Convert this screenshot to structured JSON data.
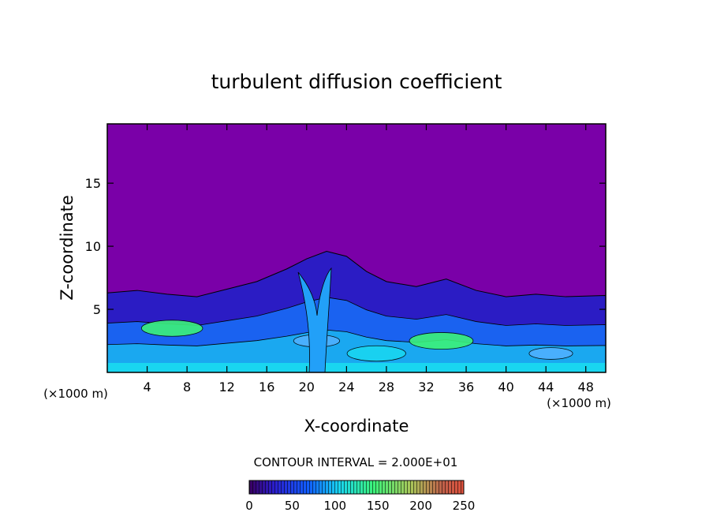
{
  "chart_data": {
    "type": "heatmap",
    "title": "turbulent diffusion coefficient",
    "xlabel": "X-coordinate",
    "ylabel": "Z-coordinate",
    "x_unit": "(×1000 m)",
    "y_unit": "(×1000 m)",
    "xlim": [
      0,
      50
    ],
    "ylim": [
      0,
      19.7
    ],
    "x_ticks": [
      "4",
      "8",
      "12",
      "16",
      "20",
      "24",
      "28",
      "32",
      "36",
      "40",
      "44",
      "48"
    ],
    "y_ticks": [
      "5",
      "10",
      "15"
    ],
    "contour_interval_label": "CONTOUR INTERVAL = 2.000E+01",
    "colorbar": {
      "min": 0,
      "max": 250,
      "ticks": [
        "0",
        "50",
        "100",
        "150",
        "200",
        "250"
      ],
      "colors": [
        "#7a00a8",
        "#2a1fd0",
        "#1060ff",
        "#19d6f0",
        "#3cf27a",
        "#c8e05a",
        "#e0503c"
      ]
    },
    "field": {
      "background_value": 0,
      "boundary_layer_top": [
        [
          0,
          6.3
        ],
        [
          3,
          6.5
        ],
        [
          6,
          6.2
        ],
        [
          9,
          6.0
        ],
        [
          12,
          6.6
        ],
        [
          15,
          7.2
        ],
        [
          18,
          8.2
        ],
        [
          20,
          9.0
        ],
        [
          22,
          9.6
        ],
        [
          24,
          9.2
        ],
        [
          26,
          8.0
        ],
        [
          28,
          7.2
        ],
        [
          31,
          6.8
        ],
        [
          34,
          7.4
        ],
        [
          37,
          6.5
        ],
        [
          40,
          6.0
        ],
        [
          43,
          6.2
        ],
        [
          46,
          6.0
        ],
        [
          50,
          6.1
        ]
      ],
      "hotspots": [
        {
          "x": 6.5,
          "z": 3.5,
          "value": 130
        },
        {
          "x": 21.0,
          "z": 2.5,
          "value": 70
        },
        {
          "x": 27.0,
          "z": 1.5,
          "value": 120
        },
        {
          "x": 33.5,
          "z": 2.5,
          "value": 140
        },
        {
          "x": 44.5,
          "z": 1.5,
          "value": 60
        }
      ]
    }
  }
}
